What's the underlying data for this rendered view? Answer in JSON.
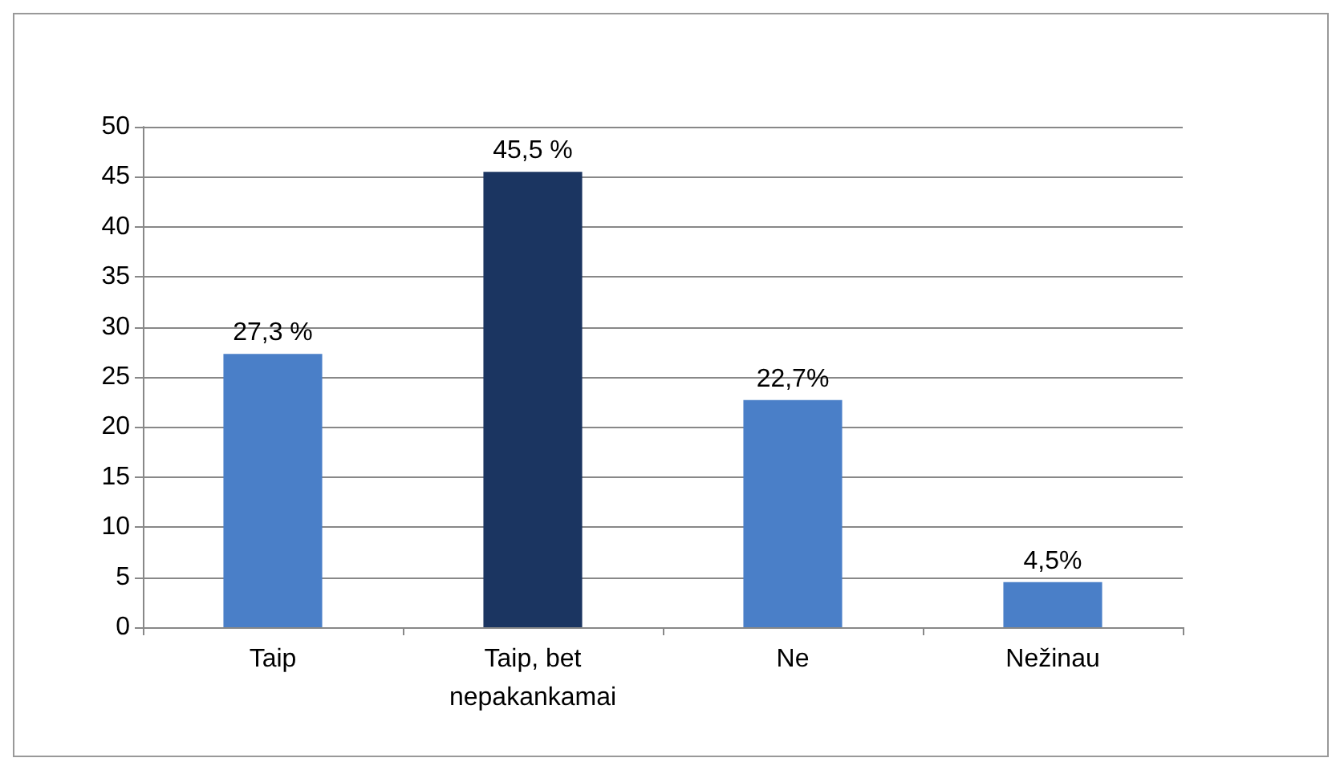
{
  "chart_data": {
    "type": "bar",
    "categories": [
      "Taip",
      "Taip, bet\nnepakankamai",
      "Ne",
      "Nežinau"
    ],
    "values": [
      27.3,
      45.5,
      22.7,
      4.5
    ],
    "colors": [
      "#4a7fc8",
      "#1b3561",
      "#4a7fc8",
      "#4a7fc8"
    ],
    "value_labels": [
      "27,3 %",
      "45,5 %",
      "22,7%",
      "4,5%"
    ],
    "ylim": [
      0,
      50
    ],
    "yticks": [
      0,
      5,
      10,
      15,
      20,
      25,
      30,
      35,
      40,
      45,
      50
    ],
    "grid": "y"
  }
}
